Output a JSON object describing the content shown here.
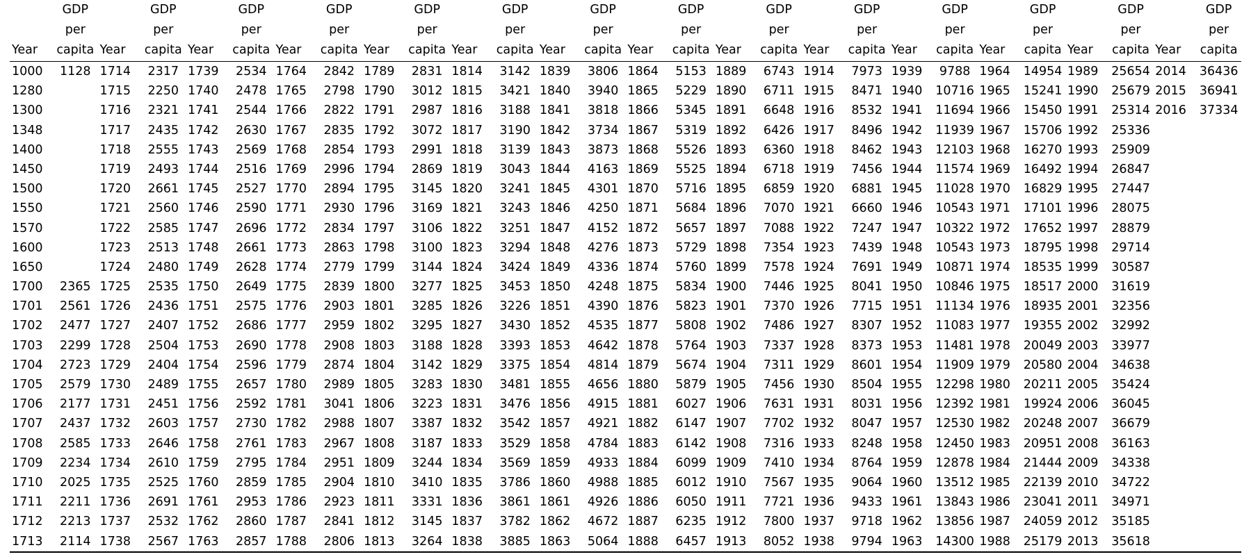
{
  "headers": {
    "year": "Year",
    "gdp_line1": "GDP",
    "gdp_line2": "per",
    "gdp_line3": "capita"
  },
  "column_groups": [
    {
      "years": [
        "1000",
        "1280",
        "1300",
        "1348",
        "1400",
        "1450",
        "1500",
        "1550",
        "1570",
        "1600",
        "1650",
        "1700",
        "1701",
        "1702",
        "1703",
        "1704",
        "1705",
        "1706",
        "1707",
        "1708",
        "1709",
        "1710",
        "1711",
        "1712",
        "1713"
      ],
      "gdp": [
        "1128",
        "",
        "",
        "",
        "",
        "",
        "",
        "",
        "",
        "",
        "",
        "2365",
        "2561",
        "2477",
        "2299",
        "2723",
        "2579",
        "2177",
        "2437",
        "2585",
        "2234",
        "2025",
        "2211",
        "2213",
        "2114"
      ]
    },
    {
      "years": [
        "1714",
        "1715",
        "1716",
        "1717",
        "1718",
        "1719",
        "1720",
        "1721",
        "1722",
        "1723",
        "1724",
        "1725",
        "1726",
        "1727",
        "1728",
        "1729",
        "1730",
        "1731",
        "1732",
        "1733",
        "1734",
        "1735",
        "1736",
        "1737",
        "1738"
      ],
      "gdp": [
        "2317",
        "2250",
        "2321",
        "2435",
        "2555",
        "2493",
        "2661",
        "2560",
        "2585",
        "2513",
        "2480",
        "2535",
        "2436",
        "2407",
        "2504",
        "2404",
        "2489",
        "2451",
        "2603",
        "2646",
        "2610",
        "2525",
        "2691",
        "2532",
        "2567"
      ]
    },
    {
      "years": [
        "1739",
        "1740",
        "1741",
        "1742",
        "1743",
        "1744",
        "1745",
        "1746",
        "1747",
        "1748",
        "1749",
        "1750",
        "1751",
        "1752",
        "1753",
        "1754",
        "1755",
        "1756",
        "1757",
        "1758",
        "1759",
        "1760",
        "1761",
        "1762",
        "1763"
      ],
      "gdp": [
        "2534",
        "2478",
        "2544",
        "2630",
        "2569",
        "2516",
        "2527",
        "2590",
        "2696",
        "2661",
        "2628",
        "2649",
        "2575",
        "2686",
        "2690",
        "2596",
        "2657",
        "2592",
        "2730",
        "2761",
        "2795",
        "2859",
        "2953",
        "2860",
        "2857"
      ]
    },
    {
      "years": [
        "1764",
        "1765",
        "1766",
        "1767",
        "1768",
        "1769",
        "1770",
        "1771",
        "1772",
        "1773",
        "1774",
        "1775",
        "1776",
        "1777",
        "1778",
        "1779",
        "1780",
        "1781",
        "1782",
        "1783",
        "1784",
        "1785",
        "1786",
        "1787",
        "1788"
      ],
      "gdp": [
        "2842",
        "2798",
        "2822",
        "2835",
        "2854",
        "2996",
        "2894",
        "2930",
        "2834",
        "2863",
        "2779",
        "2839",
        "2903",
        "2959",
        "2908",
        "2874",
        "2989",
        "3041",
        "2988",
        "2967",
        "2951",
        "2904",
        "2923",
        "2841",
        "2806"
      ]
    },
    {
      "years": [
        "1789",
        "1790",
        "1791",
        "1792",
        "1793",
        "1794",
        "1795",
        "1796",
        "1797",
        "1798",
        "1799",
        "1800",
        "1801",
        "1802",
        "1803",
        "1804",
        "1805",
        "1806",
        "1807",
        "1808",
        "1809",
        "1810",
        "1811",
        "1812",
        "1813"
      ],
      "gdp": [
        "2831",
        "3012",
        "2987",
        "3072",
        "2991",
        "2869",
        "3145",
        "3169",
        "3106",
        "3100",
        "3144",
        "3277",
        "3285",
        "3295",
        "3188",
        "3142",
        "3283",
        "3223",
        "3387",
        "3187",
        "3244",
        "3410",
        "3331",
        "3145",
        "3264"
      ]
    },
    {
      "years": [
        "1814",
        "1815",
        "1816",
        "1817",
        "1818",
        "1819",
        "1820",
        "1821",
        "1822",
        "1823",
        "1824",
        "1825",
        "1826",
        "1827",
        "1828",
        "1829",
        "1830",
        "1831",
        "1832",
        "1833",
        "1834",
        "1835",
        "1836",
        "1837",
        "1838"
      ],
      "gdp": [
        "3142",
        "3421",
        "3188",
        "3190",
        "3139",
        "3043",
        "3241",
        "3243",
        "3251",
        "3294",
        "3424",
        "3453",
        "3226",
        "3430",
        "3393",
        "3375",
        "3481",
        "3476",
        "3542",
        "3529",
        "3569",
        "3786",
        "3861",
        "3782",
        "3885"
      ]
    },
    {
      "years": [
        "1839",
        "1840",
        "1841",
        "1842",
        "1843",
        "1844",
        "1845",
        "1846",
        "1847",
        "1848",
        "1849",
        "1850",
        "1851",
        "1852",
        "1853",
        "1854",
        "1855",
        "1856",
        "1857",
        "1858",
        "1859",
        "1860",
        "1861",
        "1862",
        "1863"
      ],
      "gdp": [
        "3806",
        "3940",
        "3818",
        "3734",
        "3873",
        "4163",
        "4301",
        "4250",
        "4152",
        "4276",
        "4336",
        "4248",
        "4390",
        "4535",
        "4642",
        "4814",
        "4656",
        "4915",
        "4921",
        "4784",
        "4933",
        "4988",
        "4926",
        "4672",
        "5064"
      ]
    },
    {
      "years": [
        "1864",
        "1865",
        "1866",
        "1867",
        "1868",
        "1869",
        "1870",
        "1871",
        "1872",
        "1873",
        "1874",
        "1875",
        "1876",
        "1877",
        "1878",
        "1879",
        "1880",
        "1881",
        "1882",
        "1883",
        "1884",
        "1885",
        "1886",
        "1887",
        "1888"
      ],
      "gdp": [
        "5153",
        "5229",
        "5345",
        "5319",
        "5526",
        "5525",
        "5716",
        "5684",
        "5657",
        "5729",
        "5760",
        "5834",
        "5823",
        "5808",
        "5764",
        "5674",
        "5879",
        "6027",
        "6147",
        "6142",
        "6099",
        "6012",
        "6050",
        "6235",
        "6457"
      ]
    },
    {
      "years": [
        "1889",
        "1890",
        "1891",
        "1892",
        "1893",
        "1894",
        "1895",
        "1896",
        "1897",
        "1898",
        "1899",
        "1900",
        "1901",
        "1902",
        "1903",
        "1904",
        "1905",
        "1906",
        "1907",
        "1908",
        "1909",
        "1910",
        "1911",
        "1912",
        "1913"
      ],
      "gdp": [
        "6743",
        "6711",
        "6648",
        "6426",
        "6360",
        "6718",
        "6859",
        "7070",
        "7088",
        "7354",
        "7578",
        "7446",
        "7370",
        "7486",
        "7337",
        "7311",
        "7456",
        "7631",
        "7702",
        "7316",
        "7410",
        "7567",
        "7721",
        "7800",
        "8052"
      ]
    },
    {
      "years": [
        "1914",
        "1915",
        "1916",
        "1917",
        "1918",
        "1919",
        "1920",
        "1921",
        "1922",
        "1923",
        "1924",
        "1925",
        "1926",
        "1927",
        "1928",
        "1929",
        "1930",
        "1931",
        "1932",
        "1933",
        "1934",
        "1935",
        "1936",
        "1937",
        "1938"
      ],
      "gdp": [
        "7973",
        "8471",
        "8532",
        "8496",
        "8462",
        "7456",
        "6881",
        "6660",
        "7247",
        "7439",
        "7691",
        "8041",
        "7715",
        "8307",
        "8373",
        "8601",
        "8504",
        "8031",
        "8047",
        "8248",
        "8764",
        "9064",
        "9433",
        "9718",
        "9794"
      ]
    },
    {
      "years": [
        "1939",
        "1940",
        "1941",
        "1942",
        "1943",
        "1944",
        "1945",
        "1946",
        "1947",
        "1948",
        "1949",
        "1950",
        "1951",
        "1952",
        "1953",
        "1954",
        "1955",
        "1956",
        "1957",
        "1958",
        "1959",
        "1960",
        "1961",
        "1962",
        "1963"
      ],
      "gdp": [
        "9788",
        "10716",
        "11694",
        "11939",
        "12103",
        "11574",
        "11028",
        "10543",
        "10322",
        "10543",
        "10871",
        "10846",
        "11134",
        "11083",
        "11481",
        "11909",
        "12298",
        "12392",
        "12530",
        "12450",
        "12878",
        "13512",
        "13843",
        "13856",
        "14300"
      ]
    },
    {
      "years": [
        "1964",
        "1965",
        "1966",
        "1967",
        "1968",
        "1969",
        "1970",
        "1971",
        "1972",
        "1973",
        "1974",
        "1975",
        "1976",
        "1977",
        "1978",
        "1979",
        "1980",
        "1981",
        "1982",
        "1983",
        "1984",
        "1985",
        "1986",
        "1987",
        "1988"
      ],
      "gdp": [
        "14954",
        "15241",
        "15450",
        "15706",
        "16270",
        "16492",
        "16829",
        "17101",
        "17652",
        "18795",
        "18535",
        "18517",
        "18935",
        "19355",
        "20049",
        "20580",
        "20211",
        "19924",
        "20248",
        "20951",
        "21444",
        "22139",
        "23041",
        "24059",
        "25179"
      ]
    },
    {
      "years": [
        "1989",
        "1990",
        "1991",
        "1992",
        "1993",
        "1994",
        "1995",
        "1996",
        "1997",
        "1998",
        "1999",
        "2000",
        "2001",
        "2002",
        "2003",
        "2004",
        "2005",
        "2006",
        "2007",
        "2008",
        "2009",
        "2010",
        "2011",
        "2012",
        "2013"
      ],
      "gdp": [
        "25654",
        "25679",
        "25314",
        "25336",
        "25909",
        "26847",
        "27447",
        "28075",
        "28879",
        "29714",
        "30587",
        "31619",
        "32356",
        "32992",
        "33977",
        "34638",
        "35424",
        "36045",
        "36679",
        "36163",
        "34338",
        "34722",
        "34971",
        "35185",
        "35618"
      ]
    },
    {
      "years": [
        "2014",
        "2015",
        "2016",
        "",
        "",
        "",
        "",
        "",
        "",
        "",
        "",
        "",
        "",
        "",
        "",
        "",
        "",
        "",
        "",
        "",
        "",
        "",
        "",
        "",
        ""
      ],
      "gdp": [
        "36436",
        "36941",
        "37334",
        "",
        "",
        "",
        "",
        "",
        "",
        "",
        "",
        "",
        "",
        "",
        "",
        "",
        "",
        "",
        "",
        "",
        "",
        "",
        "",
        "",
        ""
      ]
    }
  ]
}
